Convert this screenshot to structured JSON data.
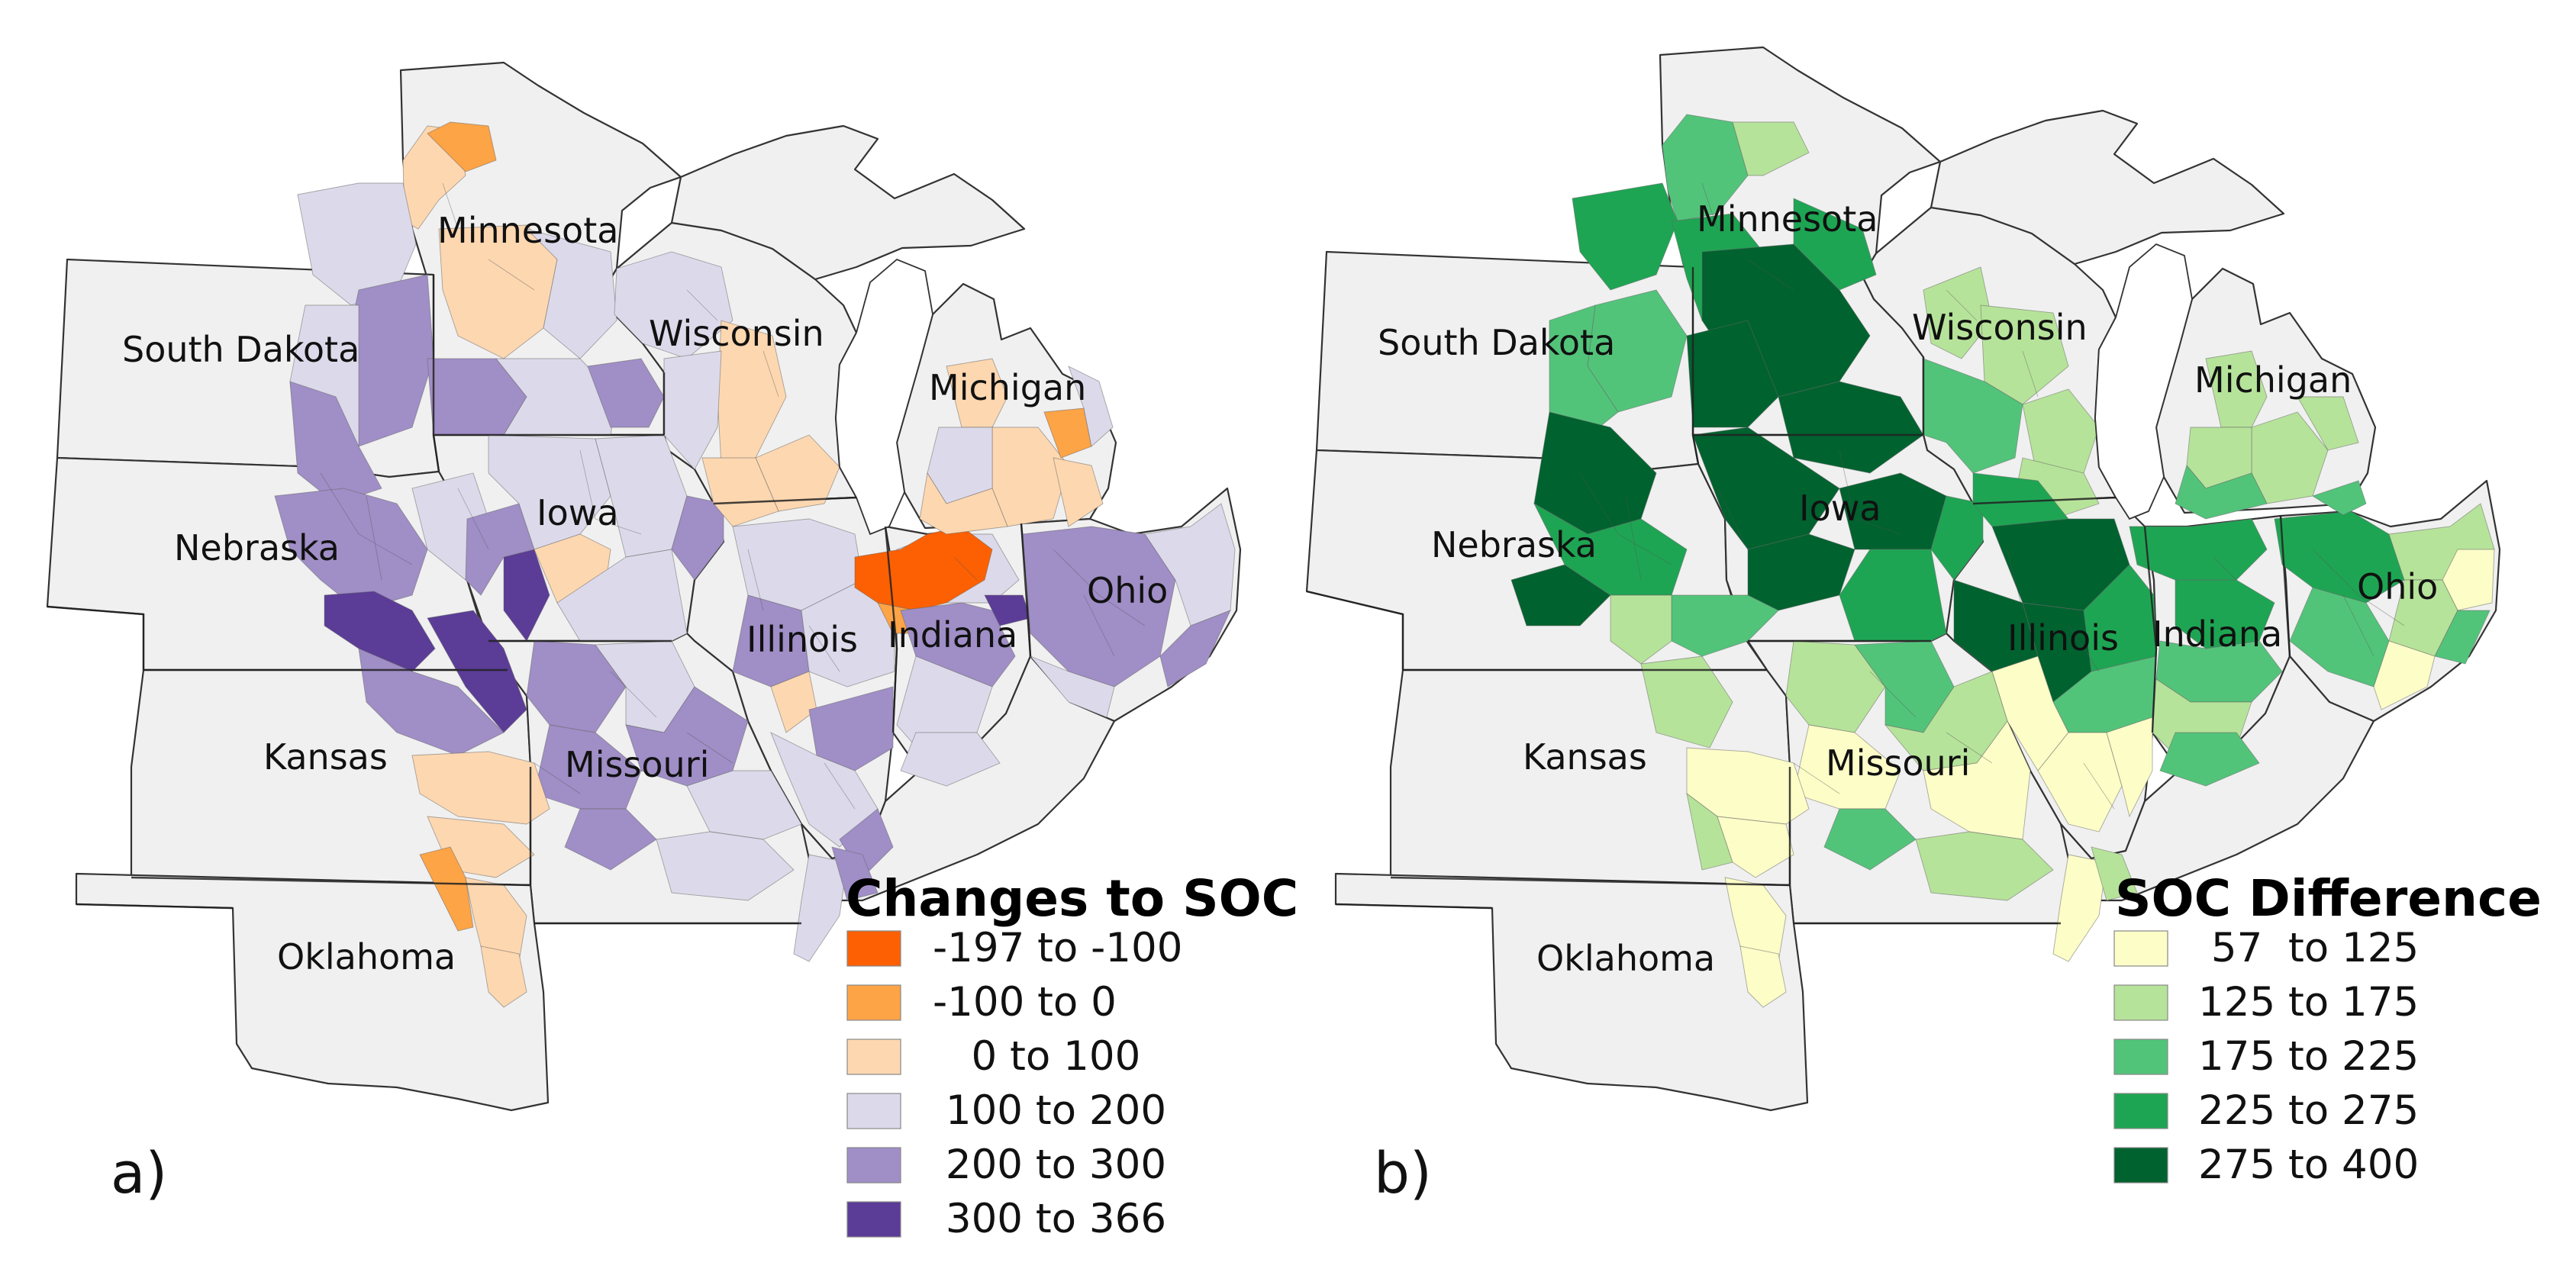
{
  "panels": [
    {
      "id": "a",
      "tag": "a)",
      "legend_title": "Changes to SOC",
      "legend": [
        {
          "label": "-197 to -100",
          "color": "#fd6002"
        },
        {
          "label": "-100 to 0",
          "color": "#fda446"
        },
        {
          "label": "   0 to 100",
          "color": "#fdd7b0"
        },
        {
          "label": " 100 to 200",
          "color": "#dcdaea"
        },
        {
          "label": " 200 to 300",
          "color": "#a08ec7"
        },
        {
          "label": " 300 to 366",
          "color": "#5b3c97"
        }
      ]
    },
    {
      "id": "b",
      "tag": "b)",
      "legend_title": "SOC Difference",
      "legend": [
        {
          "label": " 57  to 125",
          "color": "#fcfdc7"
        },
        {
          "label": "125 to 175",
          "color": "#b6e39a"
        },
        {
          "label": "175 to 225",
          "color": "#52c47a"
        },
        {
          "label": "225 to 275",
          "color": "#1ea553"
        },
        {
          "label": "275 to 400",
          "color": "#00622f"
        }
      ]
    }
  ],
  "state_labels": {
    "minnesota": "Minnesota",
    "south_dakota": "South Dakota",
    "wisconsin": "Wisconsin",
    "michigan": "Michigan",
    "iowa": "Iowa",
    "nebraska": "Nebraska",
    "illinois": "Illinois",
    "indiana": "Indiana",
    "ohio": "Ohio",
    "kansas": "Kansas",
    "missouri": "Missouri",
    "oklahoma": "Oklahoma"
  }
}
